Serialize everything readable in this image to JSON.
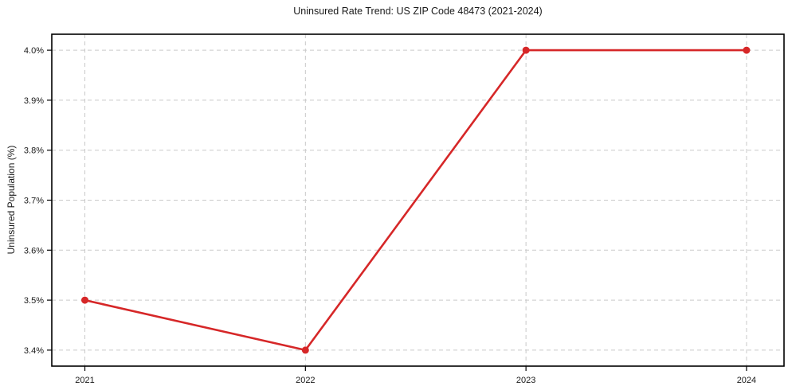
{
  "chart_data": {
    "type": "line",
    "title": "Uninsured Rate Trend: US ZIP Code 48473 (2021-2024)",
    "xlabel": "",
    "ylabel": "Uninsured Population (%)",
    "x": [
      2021,
      2022,
      2023,
      2024
    ],
    "categories": [
      "2021",
      "2022",
      "2023",
      "2024"
    ],
    "series": [
      {
        "name": "Uninsured Population (%)",
        "values": [
          3.5,
          3.4,
          4.0,
          4.0
        ]
      }
    ],
    "xticks": [
      2021,
      2022,
      2023,
      2024
    ],
    "yticks": [
      3.4,
      3.5,
      3.6,
      3.7,
      3.8,
      3.9,
      4.0
    ],
    "ytick_suffix": "%",
    "xlim": [
      2020.85,
      2024.17
    ],
    "ylim": [
      3.368,
      4.032
    ],
    "grid": true,
    "grid_style": "dashed",
    "legend_position": "none",
    "colors": {
      "line": "#d62728",
      "marker": "#d62728",
      "grid": "#c9c9c9",
      "spine": "#000000",
      "background": "#ffffff",
      "text": "#1a1a1a"
    }
  }
}
